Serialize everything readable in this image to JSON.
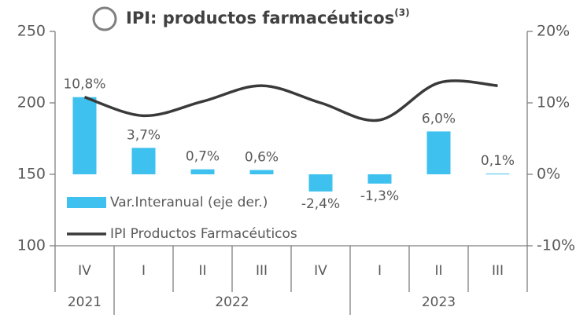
{
  "chart_data": {
    "type": "bar_line",
    "title": "IPI: productos farmacéuticos",
    "title_note": "(3)",
    "categories": [
      "IV",
      "I",
      "II",
      "III",
      "IV",
      "I",
      "II",
      "III"
    ],
    "years": [
      "2021",
      "2022",
      "2022",
      "2022",
      "2022",
      "2023",
      "2023",
      "2023"
    ],
    "series": [
      {
        "name": "Var.Interanual (eje der.)",
        "type": "bar",
        "axis": "y2",
        "color": "#3ec1ef",
        "values": [
          10.8,
          3.7,
          0.7,
          0.6,
          -2.4,
          -1.3,
          6.0,
          0.1
        ],
        "value_labels": [
          "10,8%",
          "3,7%",
          "0,7%",
          "0,6%",
          "-2,4%",
          "-1,3%",
          "6,0%",
          "0,1%"
        ]
      },
      {
        "name": "IPI Productos Farmacéuticos",
        "type": "line",
        "color": "#3a3a3a",
        "values": [
          204,
          191,
          201,
          212,
          200,
          188,
          214,
          212
        ]
      }
    ],
    "ylim": [
      100,
      250
    ],
    "yticks": [
      100,
      150,
      200,
      250
    ],
    "y2lim": [
      -10,
      20
    ],
    "y2ticks": [
      {
        "value": -10,
        "label": "-10%"
      },
      {
        "value": 0,
        "label": "0%"
      },
      {
        "value": 10,
        "label": "10%"
      },
      {
        "value": 20,
        "label": "20%"
      }
    ]
  }
}
